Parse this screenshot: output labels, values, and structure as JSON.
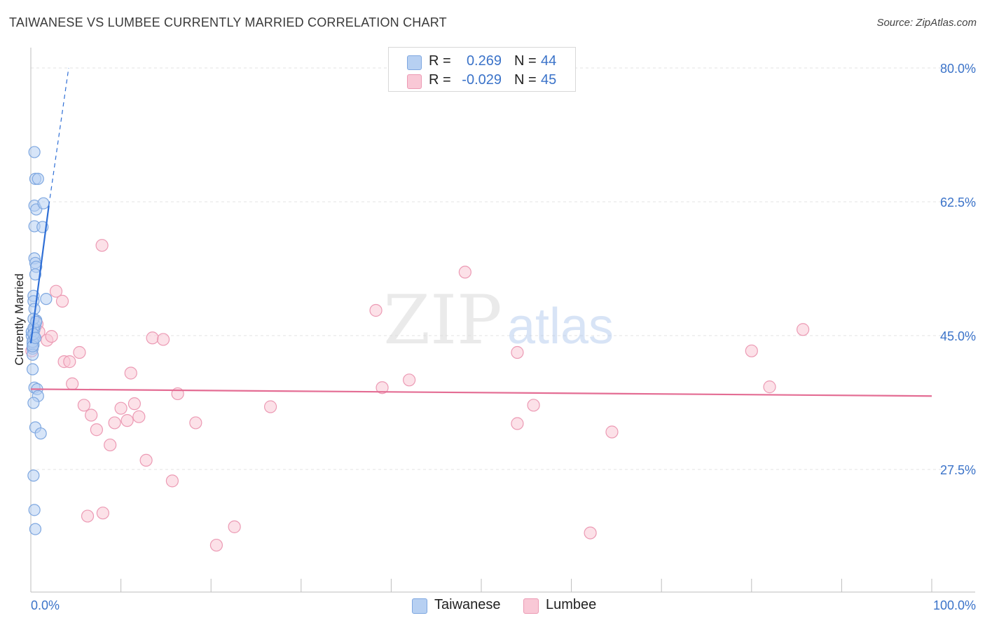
{
  "header": {
    "title": "TAIWANESE VS LUMBEE CURRENTLY MARRIED CORRELATION CHART",
    "source": "Source: ZipAtlas.com"
  },
  "legend": {
    "taiwanese": {
      "r_label": "R =",
      "r_value": "0.269",
      "n_label": "N =",
      "n_value": "44"
    },
    "lumbee": {
      "r_label": "R =",
      "r_value": "-0.029",
      "n_label": "N =",
      "n_value": "45"
    }
  },
  "bottom_legend": {
    "taiwanese": "Taiwanese",
    "lumbee": "Lumbee"
  },
  "watermark": {
    "zip": "ZIP",
    "atlas": "atlas"
  },
  "colors": {
    "taiwanese_fill": "#b7d0f2",
    "taiwanese_stroke": "#7ea7e0",
    "taiwanese_line": "#2f6fd6",
    "lumbee_fill": "#f9c8d6",
    "lumbee_stroke": "#ec9ab4",
    "lumbee_line": "#e46d94",
    "tick_text": "#3b73c9",
    "grid": "#e3e3e3"
  },
  "chart_data": {
    "type": "scatter",
    "title": "TAIWANESE VS LUMBEE CURRENTLY MARRIED CORRELATION CHART",
    "xlabel": "",
    "ylabel": "Currently Married",
    "xlim": [
      0,
      100
    ],
    "ylim": [
      10,
      82.5
    ],
    "x_tick_labels": [
      "0.0%",
      "100.0%"
    ],
    "y_ticks": [
      27.5,
      45.0,
      62.5,
      80.0
    ],
    "y_tick_labels": [
      "27.5%",
      "45.0%",
      "62.5%",
      "80.0%"
    ],
    "grid": true,
    "legend_position": "top-center",
    "series": [
      {
        "name": "Taiwanese",
        "r": 0.269,
        "n": 44,
        "points": [
          [
            0.2,
            43.3
          ],
          [
            0.3,
            44.5
          ],
          [
            0.1,
            45.0
          ],
          [
            0.4,
            45.8
          ],
          [
            0.2,
            44.0
          ],
          [
            0.5,
            46.3
          ],
          [
            0.3,
            43.8
          ],
          [
            0.6,
            47.0
          ],
          [
            0.2,
            42.5
          ],
          [
            0.4,
            44.9
          ],
          [
            0.1,
            45.5
          ],
          [
            0.3,
            46.0
          ],
          [
            0.4,
            69.0
          ],
          [
            0.5,
            65.5
          ],
          [
            0.8,
            65.5
          ],
          [
            0.4,
            62.0
          ],
          [
            0.6,
            61.5
          ],
          [
            1.4,
            62.3
          ],
          [
            0.4,
            59.3
          ],
          [
            1.3,
            59.2
          ],
          [
            0.4,
            55.1
          ],
          [
            0.5,
            54.5
          ],
          [
            0.6,
            54.0
          ],
          [
            0.5,
            53.0
          ],
          [
            0.3,
            50.2
          ],
          [
            1.7,
            49.8
          ],
          [
            0.3,
            49.5
          ],
          [
            0.4,
            48.5
          ],
          [
            0.3,
            47.2
          ],
          [
            0.6,
            46.8
          ],
          [
            0.2,
            40.6
          ],
          [
            0.4,
            38.2
          ],
          [
            0.7,
            38.0
          ],
          [
            0.8,
            37.1
          ],
          [
            0.3,
            36.2
          ],
          [
            0.5,
            33.0
          ],
          [
            1.1,
            32.2
          ],
          [
            0.3,
            26.7
          ],
          [
            0.4,
            22.2
          ],
          [
            0.5,
            19.7
          ],
          [
            0.2,
            44.2
          ],
          [
            0.3,
            45.2
          ],
          [
            0.2,
            43.6
          ],
          [
            0.5,
            44.7
          ]
        ],
        "trend": {
          "x0": 0.0,
          "y0": 44.0,
          "x1": 2.0,
          "y1": 62.0,
          "dash_x1": 4.2,
          "dash_y1": 80.0
        }
      },
      {
        "name": "Lumbee",
        "r": -0.029,
        "n": 45,
        "points": [
          [
            0.1,
            43.0
          ],
          [
            0.7,
            46.5
          ],
          [
            0.9,
            45.5
          ],
          [
            1.8,
            44.4
          ],
          [
            2.3,
            44.9
          ],
          [
            2.8,
            50.8
          ],
          [
            3.5,
            49.5
          ],
          [
            3.7,
            41.6
          ],
          [
            4.3,
            41.6
          ],
          [
            5.4,
            42.8
          ],
          [
            4.6,
            38.7
          ],
          [
            5.9,
            35.9
          ],
          [
            6.7,
            34.6
          ],
          [
            7.3,
            32.7
          ],
          [
            7.9,
            56.8
          ],
          [
            8.8,
            30.7
          ],
          [
            9.3,
            33.6
          ],
          [
            10.0,
            35.5
          ],
          [
            10.7,
            33.9
          ],
          [
            11.1,
            40.1
          ],
          [
            11.5,
            36.1
          ],
          [
            12.0,
            34.4
          ],
          [
            12.8,
            28.7
          ],
          [
            13.5,
            44.7
          ],
          [
            14.7,
            44.5
          ],
          [
            15.7,
            26.0
          ],
          [
            16.3,
            37.4
          ],
          [
            18.3,
            33.6
          ],
          [
            20.6,
            17.6
          ],
          [
            22.6,
            20.0
          ],
          [
            8.0,
            21.8
          ],
          [
            6.3,
            21.4
          ],
          [
            26.6,
            35.7
          ],
          [
            38.3,
            48.3
          ],
          [
            39.0,
            38.2
          ],
          [
            42.0,
            39.2
          ],
          [
            48.2,
            53.3
          ],
          [
            54.0,
            42.8
          ],
          [
            54.0,
            33.5
          ],
          [
            55.8,
            35.9
          ],
          [
            62.1,
            19.2
          ],
          [
            64.5,
            32.4
          ],
          [
            80.0,
            43.0
          ],
          [
            82.0,
            38.3
          ],
          [
            85.7,
            45.8
          ]
        ],
        "trend": {
          "x0": 0.0,
          "y0": 38.0,
          "x1": 100.0,
          "y1": 37.1
        }
      }
    ]
  }
}
